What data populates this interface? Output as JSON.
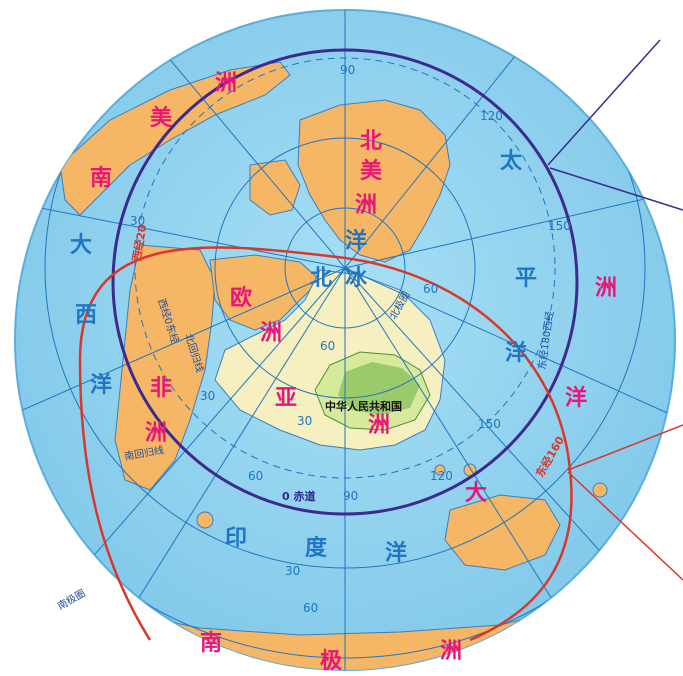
{
  "continents": {
    "north_america_1": "北",
    "north_america_2": "美",
    "north_america_3": "洲",
    "south_america_1": "南",
    "south_america_2": "美",
    "south_america_3": "洲",
    "europe_1": "欧",
    "europe_2": "洲",
    "asia_1": "亚",
    "asia_2": "洲",
    "africa_1": "非",
    "africa_2": "洲",
    "oceania_1": "大",
    "oceania_2": "洋",
    "oceania_3": "洲",
    "antarctica_1": "南",
    "antarctica_2": "极",
    "antarctica_3": "洲"
  },
  "oceans": {
    "pacific_1": "太",
    "pacific_2": "平",
    "pacific_3": "洋",
    "atlantic_1": "大",
    "atlantic_2": "西",
    "atlantic_3": "洋",
    "arctic_1": "北",
    "arctic_2": "冰",
    "arctic_3": "洋",
    "indian_1": "印",
    "indian_2": "度",
    "indian_3": "洋"
  },
  "labels": {
    "country_china": "中华人民共和国",
    "equator": "0 赤道",
    "west_20": "西经20",
    "east_160": "东经160",
    "east_180": "东经180西经",
    "west_hemisphere": "西经0东经",
    "north_tropic": "北回归线",
    "south_tropic": "南回归线",
    "antarctic_circle": "南极圈",
    "arctic_circle": "北极圈"
  },
  "graticule_numbers": {
    "n90": "90",
    "n120": "120",
    "n150": "150",
    "n150b": "150",
    "n120b": "120",
    "n90b": "90",
    "n60": "60",
    "n60b": "60",
    "n30": "30",
    "n30b": "30",
    "n30c": "30",
    "n30d": "30",
    "n60c": "60",
    "n60d": "60"
  },
  "colors": {
    "ocean": "#8fd2ee",
    "ocean_edge": "#62b6e0",
    "land": "#f5b665",
    "land_china": "#d7ea9c",
    "asia_land": "#f6f0c0",
    "grid": "#1f76c2",
    "hemisphere_circle": "#3d2a8e",
    "red_circle": "#d9372a",
    "continent_text": "#e8157a"
  }
}
